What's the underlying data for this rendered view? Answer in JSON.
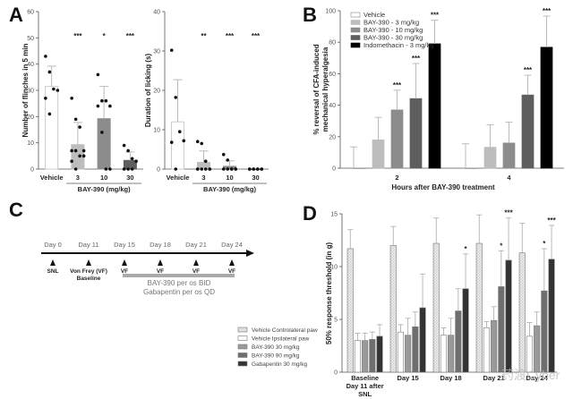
{
  "panels": {
    "A": "A",
    "B": "B",
    "C": "C",
    "D": "D"
  },
  "chart_data": [
    {
      "id": "A1",
      "type": "bar",
      "title": "",
      "ylabel": "Number of flinches in 5 min",
      "xlabel": "BAY-390 (mg/kg)",
      "ylim": [
        0,
        60
      ],
      "yticks": [
        0,
        10,
        20,
        30,
        40,
        50,
        60
      ],
      "categories": [
        "Vehicle",
        "3",
        "10",
        "30"
      ],
      "values": [
        31.5,
        9.3,
        19.2,
        3.3
      ],
      "errors": [
        7.7,
        8.5,
        12.3,
        3.2
      ],
      "colors": [
        "#ffffff",
        "#bdbdbd",
        "#8c8c8c",
        "#5e5e5e"
      ],
      "significance": [
        "",
        "***",
        "*",
        "***"
      ],
      "points": [
        [
          43,
          37,
          30.5,
          30,
          27,
          21
        ],
        [
          27,
          19,
          16,
          7,
          7,
          7,
          5,
          5,
          3,
          0
        ],
        [
          36,
          26,
          26,
          24,
          24,
          14,
          0,
          0
        ],
        [
          9,
          7,
          4,
          3,
          0,
          0,
          0
        ]
      ],
      "grouped_label_under": "BAY-390 (mg/kg)"
    },
    {
      "id": "A2",
      "type": "bar",
      "title": "",
      "ylabel": "Duration of licking (s)",
      "xlabel": "BAY-390 (mg/kg)",
      "ylim": [
        0,
        40
      ],
      "yticks": [
        0,
        10,
        20,
        30,
        40
      ],
      "categories": [
        "Vehicle",
        "3",
        "10",
        "30"
      ],
      "values": [
        12,
        1.7,
        0.7,
        0
      ],
      "errors": [
        10.7,
        2.9,
        1.4,
        0
      ],
      "colors": [
        "#ffffff",
        "#bdbdbd",
        "#8c8c8c",
        "#5e5e5e"
      ],
      "significance": [
        "",
        "**",
        "***",
        "***"
      ],
      "points": [
        [
          30.2,
          18.2,
          9.5,
          7.2,
          6.8,
          0
        ],
        [
          7,
          6.5,
          2,
          0,
          0,
          0,
          0,
          0,
          0
        ],
        [
          3.7,
          2.3,
          0,
          0,
          0,
          0,
          0,
          0
        ],
        [
          0,
          0,
          0,
          0,
          0,
          0,
          0,
          0
        ]
      ]
    },
    {
      "id": "B",
      "type": "bar",
      "ylabel": "% reversal of CFA-induced mechanical hyperalgesia",
      "xlabel": "Hours after BAY-390 treatment",
      "ylim": [
        0,
        100
      ],
      "yticks": [
        0,
        20,
        40,
        60,
        80,
        100
      ],
      "categories": [
        "2",
        "4"
      ],
      "legend_position": "top-left",
      "series": [
        {
          "name": "Vehicle",
          "color": "#ffffff",
          "values": [
            0,
            0
          ],
          "errors": [
            13.5,
            15.5
          ],
          "significance": [
            "",
            ""
          ]
        },
        {
          "name": "BAY-390 - 3 mg/kg",
          "color": "#bdbdbd",
          "values": [
            18,
            13.3
          ],
          "errors": [
            14.3,
            14.3
          ],
          "significance": [
            "",
            ""
          ]
        },
        {
          "name": "BAY-390 - 10 mg/kg",
          "color": "#8c8c8c",
          "values": [
            37,
            16
          ],
          "errors": [
            12.5,
            13.3
          ],
          "significance": [
            "***",
            ""
          ]
        },
        {
          "name": "BAY-390 - 30 mg/kg",
          "color": "#5e5e5e",
          "values": [
            44.2,
            46.5
          ],
          "errors": [
            22.3,
            12.5
          ],
          "significance": [
            "***",
            "***"
          ]
        },
        {
          "name": "Indomethacin - 3 mg/kg",
          "color": "#000000",
          "values": [
            79,
            76.8
          ],
          "errors": [
            15,
            19.8
          ],
          "significance": [
            "***",
            "***"
          ]
        }
      ]
    },
    {
      "id": "D",
      "type": "bar",
      "ylabel": "50% response threshold (in g)",
      "xlabel": "",
      "ylim": [
        0,
        15
      ],
      "yticks": [
        0,
        5,
        10,
        15
      ],
      "categories": [
        "Baseline\nDay 11 after\nSNL",
        "Day 15",
        "Day 18",
        "Day 21",
        "Day 24"
      ],
      "legend_position": "left",
      "series": [
        {
          "name": "Vehicle Controlateral paw",
          "color": "#e4e4e4",
          "hatch": true,
          "values": [
            11.7,
            12,
            12.2,
            12.2,
            11.3
          ],
          "errors": [
            1.8,
            1.8,
            2.4,
            2.7,
            2.8
          ],
          "significance": [
            "",
            "",
            "",
            "",
            ""
          ]
        },
        {
          "name": "Vehicle Ipsilateral paw",
          "color": "#ffffff",
          "values": [
            3,
            3.8,
            3.5,
            4.2,
            3.4
          ],
          "errors": [
            0.7,
            0.7,
            0.7,
            0.6,
            1.3
          ],
          "significance": [
            "",
            "",
            "",
            "",
            ""
          ]
        },
        {
          "name": "BAY-390 30 mg/kg",
          "color": "#9a9a9a",
          "values": [
            3.0,
            3.5,
            3.5,
            4.9,
            4.4
          ],
          "errors": [
            0.7,
            1.6,
            1.6,
            1.3,
            1.3
          ],
          "significance": [
            "",
            "",
            "",
            "",
            ""
          ]
        },
        {
          "name": "BAY-390 90 mg/kg",
          "color": "#6e6e6e",
          "values": [
            3.1,
            4.3,
            5.8,
            8.1,
            7.7
          ],
          "errors": [
            0.7,
            1.4,
            2.1,
            3.4,
            4
          ],
          "significance": [
            "",
            "",
            "",
            "*",
            "*"
          ]
        },
        {
          "name": "Gabapentin 30 mg/kg",
          "color": "#333333",
          "values": [
            3.4,
            6.1,
            7.9,
            10.6,
            10.7
          ],
          "errors": [
            1.1,
            3.2,
            3.3,
            4,
            3.2
          ],
          "significance": [
            "",
            "",
            "*",
            "***",
            "***"
          ]
        }
      ]
    }
  ],
  "timeline": {
    "days": [
      "Day 0",
      "Day 11",
      "Day 15",
      "Day 18",
      "Day 21",
      "Day 24"
    ],
    "events": [
      "SNL",
      "Von Frey (VF)\nBaseline",
      "VF",
      "VF",
      "VF",
      "VF"
    ],
    "dosing_lines": [
      "BAY-390 per os BID",
      "Gabapentin per os  QD"
    ]
  },
  "watermark": "药渡Cyber"
}
